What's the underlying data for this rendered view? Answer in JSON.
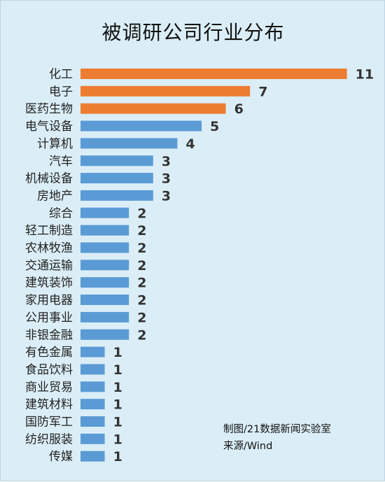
{
  "chart_data": {
    "type": "bar",
    "orientation": "horizontal",
    "title": "被调研公司行业分布",
    "categories": [
      "化工",
      "电子",
      "医药生物",
      "电气设备",
      "计算机",
      "汽车",
      "机械设备",
      "房地产",
      "综合",
      "轻工制造",
      "农林牧渔",
      "交通运输",
      "建筑装饰",
      "家用电器",
      "公用事业",
      "非银金融",
      "有色金属",
      "食品饮料",
      "商业贸易",
      "建筑材料",
      "国防军工",
      "纺织服装",
      "传媒"
    ],
    "values": [
      11,
      7,
      6,
      5,
      4,
      3,
      3,
      3,
      2,
      2,
      2,
      2,
      2,
      2,
      2,
      2,
      1,
      1,
      1,
      1,
      1,
      1,
      1
    ],
    "highlight_count": 3,
    "colors": {
      "highlight": "#ed7d31",
      "default": "#5b9bd5",
      "background": "#dbeef7"
    },
    "data_labels": true,
    "legend": false,
    "grid": false
  },
  "credits": {
    "line1": "制图/21数据新闻实验室",
    "line2": "来源/Wind"
  }
}
